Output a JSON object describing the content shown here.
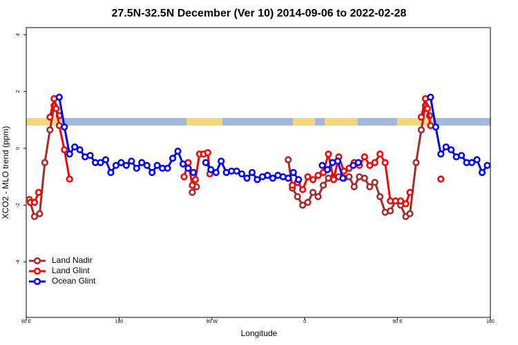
{
  "chart_data": {
    "type": "line",
    "title": "27.5N-32.5N December (Ver 10)   2014-09-06 to 2022-02-28",
    "x_label": "Longitude",
    "y_label": "XCO2 - MLO trend (ppm)",
    "xlim": [
      90,
      540
    ],
    "xticks": [
      {
        "value": 90,
        "label": "90 E"
      },
      {
        "value": 180,
        "label": "180"
      },
      {
        "value": 270,
        "label": "90 W"
      },
      {
        "value": 360,
        "label": "0"
      },
      {
        "value": 450,
        "label": "90 E"
      },
      {
        "value": 540,
        "label": "180"
      }
    ],
    "ylim": [
      -5.95,
      4.25
    ],
    "yticks": [
      -4,
      -2,
      0,
      2,
      4
    ],
    "legend": "bottomleft",
    "series": [
      {
        "name": "Land Nadir",
        "color": "#a52a2a",
        "x": [
          93,
          98,
          103,
          108,
          113,
          117,
          122,
          200,
          251,
          255,
          300,
          344,
          348,
          353,
          358,
          363,
          368,
          373,
          378,
          383,
          388,
          393,
          398,
          403,
          408,
          413,
          418,
          423,
          428,
          433,
          438,
          443,
          448,
          453,
          458,
          462,
          468,
          473,
          477,
          481
        ],
        "values": [
          -1.8,
          -2.4,
          -2.3,
          -0.5,
          0.65,
          1.5,
          1.15,
          null,
          -1.55,
          -1.35,
          null,
          -0.4,
          -1.4,
          -1.7,
          -2.0,
          -1.9,
          -1.55,
          -1.7,
          -1.3,
          -1.05,
          -1.0,
          -1.0,
          -1.05,
          -1.0,
          -1.35,
          -1.0,
          -1.05,
          -1.35,
          -1.2,
          -1.7,
          -2.25,
          -2.2,
          -1.85,
          -2.0,
          -2.4,
          -2.3,
          -0.5,
          0.65,
          1.5,
          1.15
        ]
      },
      {
        "name": "Land Glint",
        "color": "#ff0000",
        "x": [
          94,
          98,
          102,
          108,
          113,
          117,
          119,
          122,
          127,
          132,
          200,
          243,
          247,
          251,
          254,
          258,
          262,
          266,
          268,
          300,
          348,
          353,
          358,
          363,
          368,
          373,
          378,
          383,
          388,
          393,
          398,
          403,
          408,
          413,
          418,
          423,
          428,
          433,
          438,
          443,
          448,
          453,
          458,
          462,
          468,
          473,
          477,
          479,
          482,
          487,
          492
        ],
        "values": [
          -1.9,
          -1.9,
          -1.55,
          null,
          1.1,
          1.75,
          1.4,
          0.8,
          -0.05,
          -1.08,
          null,
          -1.0,
          -0.5,
          -1.3,
          -1.1,
          -0.2,
          -0.2,
          -0.15,
          -0.9,
          null,
          -1.3,
          -1.2,
          -1.45,
          -1.0,
          -1.1,
          -0.95,
          -0.85,
          -0.2,
          -1.1,
          -0.3,
          -0.8,
          -0.7,
          -0.5,
          -0.6,
          -0.3,
          -0.6,
          -0.5,
          -0.2,
          -0.5,
          -1.85,
          -1.85,
          -1.85,
          -1.95,
          -1.55,
          null,
          1.1,
          1.75,
          1.4,
          0.8,
          null,
          -1.08
        ]
      },
      {
        "name": "Ocean Glint",
        "color": "#0000ff",
        "x": [
          122,
          127,
          132,
          137,
          142,
          147,
          152,
          157,
          162,
          167,
          172,
          177,
          182,
          187,
          192,
          197,
          202,
          207,
          212,
          217,
          222,
          227,
          232,
          237,
          242,
          247,
          252,
          258,
          264,
          269,
          274,
          279,
          284,
          289,
          294,
          299,
          304,
          309,
          314,
          319,
          324,
          329,
          334,
          339,
          344,
          349,
          354,
          365,
          377,
          382,
          387,
          392,
          397,
          402,
          407,
          412,
          450,
          482,
          487,
          492,
          497,
          502,
          507,
          512,
          517,
          522,
          527,
          532,
          537
        ],
        "values": [
          1.8,
          0.75,
          -0.2,
          0.05,
          -0.05,
          -0.3,
          -0.25,
          -0.5,
          -0.5,
          -0.4,
          -0.85,
          -0.6,
          -0.5,
          -0.6,
          -0.45,
          -0.7,
          -0.5,
          -0.6,
          -0.85,
          -0.6,
          -0.7,
          -0.7,
          -0.35,
          -0.1,
          -0.55,
          -0.7,
          -0.85,
          null,
          -0.5,
          -0.75,
          -0.85,
          -0.45,
          -0.85,
          -0.8,
          -0.8,
          -0.9,
          -1.05,
          -0.85,
          -1.1,
          -1.0,
          -0.95,
          -1.05,
          -0.95,
          -1.0,
          -1.05,
          -0.85,
          -1.1,
          null,
          -0.6,
          -0.75,
          -0.5,
          -0.45,
          -1.05,
          null,
          -0.6,
          -0.5,
          null,
          1.8,
          0.75,
          -0.2,
          0.05,
          -0.05,
          -0.3,
          -0.25,
          -0.5,
          -0.5,
          -0.4,
          -0.85,
          -0.6
        ]
      }
    ]
  }
}
